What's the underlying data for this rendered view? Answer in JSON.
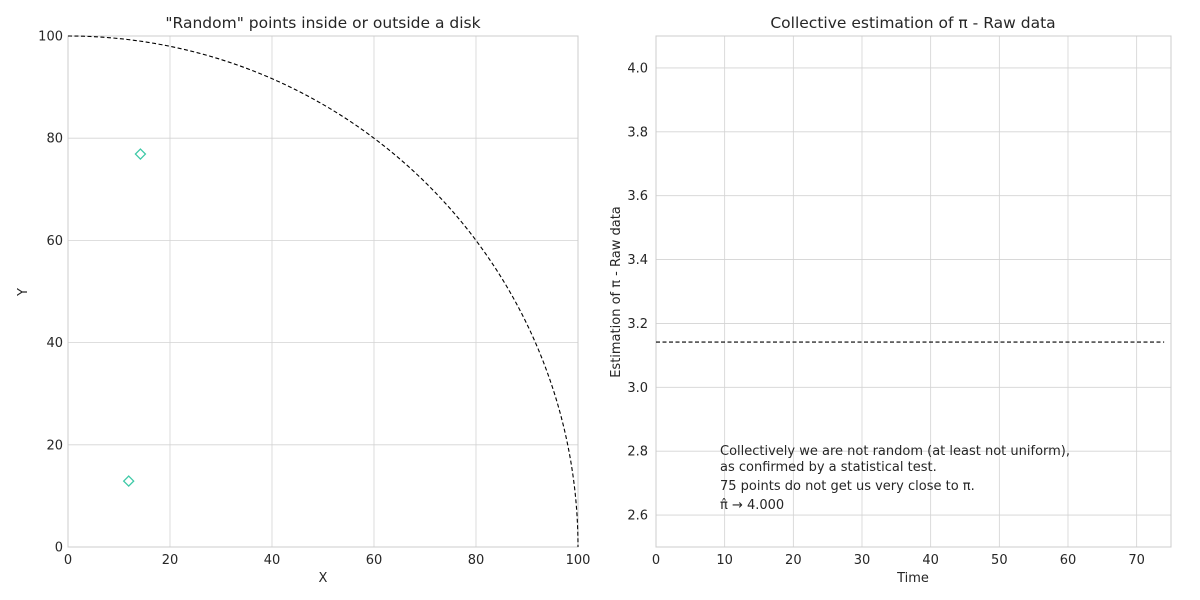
{
  "chart_data": [
    {
      "type": "scatter",
      "title": "\"Random\" points inside or outside a disk",
      "xlabel": "X",
      "ylabel": "Y",
      "xlim": [
        0,
        100
      ],
      "ylim": [
        0,
        100
      ],
      "xticks": [
        0,
        20,
        40,
        60,
        80,
        100
      ],
      "yticks": [
        0,
        20,
        40,
        60,
        80,
        100
      ],
      "grid": true,
      "points": [
        {
          "x": 14.2,
          "y": 76.9
        },
        {
          "x": 11.9,
          "y": 12.9
        }
      ],
      "point_marker": "diamond-open",
      "point_color": "#3ec9a7",
      "reference_curve": {
        "type": "quarter-circle",
        "center": [
          0,
          0
        ],
        "radius": 100,
        "style": "dashed",
        "color": "#000000"
      }
    },
    {
      "type": "line",
      "title": "Collective estimation of π - Raw data",
      "xlabel": "Time",
      "ylabel": "Estimation of π - Raw data",
      "xlim": [
        0,
        75
      ],
      "ylim": [
        2.5,
        4.1
      ],
      "xticks": [
        0,
        10,
        20,
        30,
        40,
        50,
        60,
        70
      ],
      "yticks": [
        "2.6",
        "2.8",
        "3.0",
        "3.2",
        "3.4",
        "3.6",
        "3.8",
        "4.0"
      ],
      "grid": true,
      "reference_line": {
        "y": 3.14159,
        "x_range": [
          0,
          74
        ],
        "style": "dashed",
        "color": "#000000"
      },
      "annotation": [
        "Collectively we are not random (at least not uniform),",
        "as confirmed by a statistical test.",
        "75 points do not get us very close to π.",
        "π̂ → 4.000"
      ]
    }
  ]
}
